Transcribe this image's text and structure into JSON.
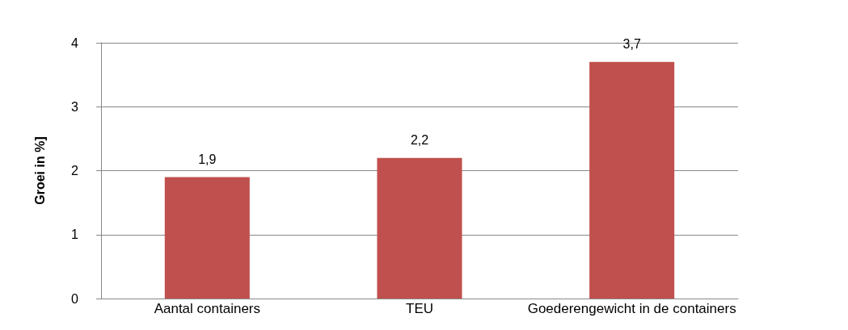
{
  "chart_data": {
    "type": "bar",
    "ylabel": "Groei in %]",
    "categories": [
      "Aantal containers",
      "TEU",
      "Goederengewicht in de containers"
    ],
    "values": [
      1.9,
      2.2,
      3.7
    ],
    "value_labels": [
      "1,9",
      "2,2",
      "3,7"
    ],
    "color": "#c0504d",
    "ylim": [
      0,
      4
    ],
    "yticks": [
      0,
      1,
      2,
      3,
      4
    ],
    "grid": "y"
  }
}
